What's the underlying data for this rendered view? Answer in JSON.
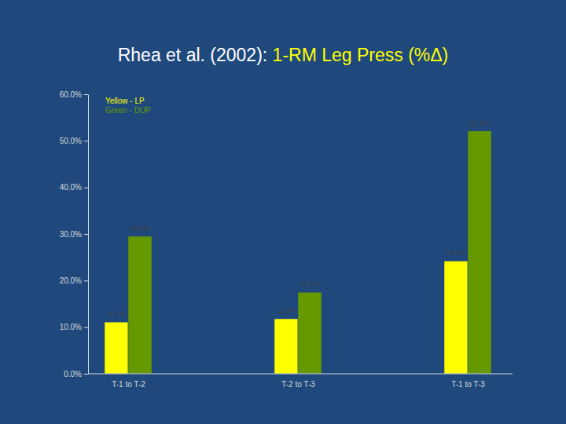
{
  "chart_data": {
    "type": "bar",
    "title": "Rhea et al. (2002): 1-RM Leg Press (%Δ)",
    "categories": [
      "T-1 to T-2",
      "T-2 to T-3",
      "T-1 to T-3"
    ],
    "series": [
      {
        "name": "Yellow - LP",
        "color": "#ffff00",
        "values": [
          11.1,
          11.8,
          24.2
        ],
        "value_labels": [
          "11.1%",
          "11.8%",
          "24.2%"
        ]
      },
      {
        "name": "Green - DUP",
        "color": "#669900",
        "values": [
          29.5,
          17.5,
          52.1
        ],
        "value_labels": [
          "29.5%",
          "17.5%",
          "52.1%"
        ]
      }
    ],
    "ylim": [
      0,
      60
    ],
    "yticks": [
      {
        "value": 0,
        "label": "0.0%"
      },
      {
        "value": 10,
        "label": "10.0%"
      },
      {
        "value": 20,
        "label": "20.0%"
      },
      {
        "value": 30,
        "label": "30.0%"
      },
      {
        "value": 40,
        "label": "40.0%"
      },
      {
        "value": 50,
        "label": "50.0%"
      },
      {
        "value": 60,
        "label": "60.0%"
      }
    ],
    "grid": false,
    "legend": "upper left",
    "data_labels": true
  }
}
